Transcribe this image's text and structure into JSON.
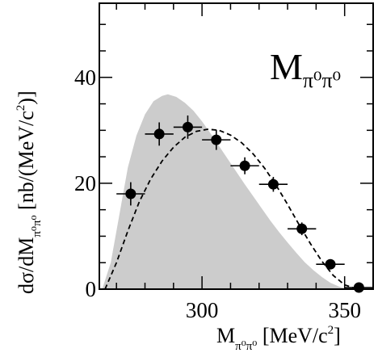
{
  "chart_data": {
    "type": "scatter",
    "xlabel": {
      "main": "M",
      "sub": "π⁰π⁰",
      "tail": " [MeV/c",
      "sup": "2",
      "end": "]"
    },
    "ylabel": {
      "pre": "dσ/dM",
      "sub": "π⁰π⁰",
      "tail": " [nb/(MeV/c",
      "sup": "2",
      "end": ")]"
    },
    "annotation": {
      "main": "M",
      "sub": "π⁰π⁰"
    },
    "xlim": [
      264,
      360
    ],
    "ylim": [
      0,
      54
    ],
    "x_ticks": [
      300,
      350
    ],
    "y_ticks": [
      0,
      20,
      40
    ],
    "series": [
      {
        "kind": "band",
        "color": "#cccccc",
        "x": [
          265,
          268,
          271,
          274,
          277,
          280,
          283,
          286,
          288,
          291,
          294,
          297,
          300,
          303,
          306,
          309,
          312,
          315,
          318,
          321,
          324,
          327,
          330,
          333,
          336,
          339,
          342,
          345,
          348,
          351
        ],
        "y": [
          0,
          5,
          14,
          23,
          29,
          33,
          35.5,
          36.5,
          36.8,
          36.3,
          35.2,
          33.7,
          31.7,
          29.4,
          27,
          24.6,
          22.2,
          19.8,
          17.5,
          15.2,
          12.9,
          10.8,
          8.8,
          6.9,
          5.1,
          3.6,
          2.3,
          1.2,
          0.5,
          0
        ]
      },
      {
        "kind": "dashed-line",
        "color": "#000000",
        "x": [
          266,
          270,
          274,
          278,
          282,
          286,
          290,
          294,
          298,
          302,
          306,
          310,
          314,
          318,
          322,
          326,
          330,
          334,
          338,
          342,
          346,
          350,
          354,
          357
        ],
        "y": [
          0,
          5,
          11,
          16.5,
          20.8,
          24.2,
          26.8,
          28.7,
          29.8,
          30.2,
          30,
          29.1,
          27.6,
          25.5,
          22.8,
          19.6,
          16,
          12.2,
          8.6,
          5.3,
          2.6,
          0.8,
          0.1,
          0
        ]
      },
      {
        "kind": "points",
        "color": "#000000",
        "x": [
          275,
          285,
          295,
          305,
          315,
          325,
          335,
          345,
          355
        ],
        "y": [
          18,
          29.3,
          30.6,
          28.2,
          23.3,
          19.8,
          11.4,
          4.7,
          0.3
        ],
        "xerr": [
          5,
          5,
          5,
          5,
          5,
          5,
          5,
          5,
          5
        ],
        "yerr": [
          2.2,
          2.2,
          2.2,
          1.9,
          1.6,
          1.4,
          1.2,
          0.9,
          0.5
        ]
      }
    ]
  }
}
